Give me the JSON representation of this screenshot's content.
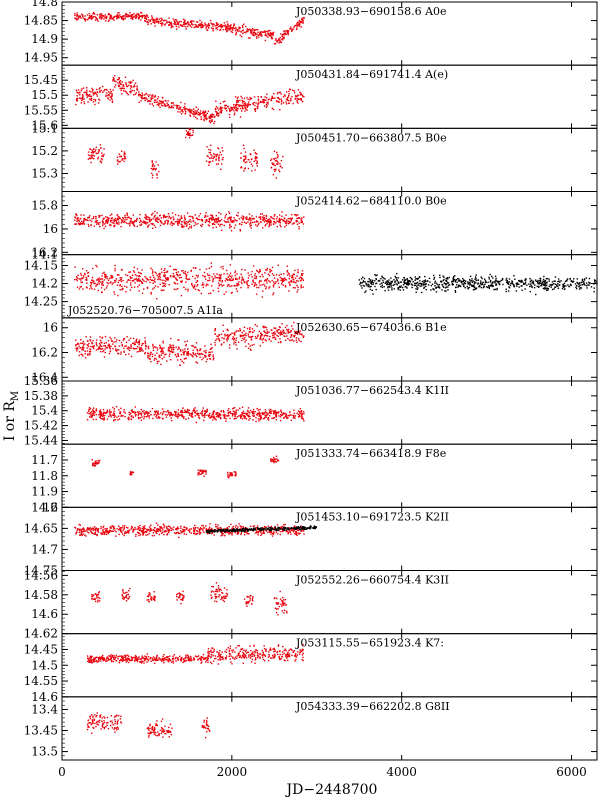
{
  "figure": {
    "xlabel": "JD−2448700",
    "ylabel_main": "I or R",
    "ylabel_sub": "M",
    "x_ticks": [
      0,
      2000,
      4000,
      6000
    ],
    "xlim": [
      0,
      6300
    ]
  },
  "colors": {
    "primary_series": "#e8000b",
    "secondary_series": "#000000",
    "frame": "#000000"
  },
  "chart_data": {
    "type": "scatter",
    "xlabel": "JD−2448700",
    "ylabel": "I or R_M",
    "xlim": [
      0,
      6300
    ],
    "shared_x": true,
    "inverted_y": true,
    "panels": [
      {
        "label": "J050338.93−690158.6  A0e",
        "ylim": [
          14.8,
          14.97
        ],
        "yticks": [
          14.8,
          14.85,
          14.9,
          14.95
        ],
        "ytick_labels": [
          "14.8",
          "14.85",
          "14.9",
          "14.95"
        ],
        "series": [
          {
            "color": "red",
            "segments": [
              [
                150,
                1000,
                14.84,
                14.84,
                0.01
              ],
              [
                1000,
                2000,
                14.85,
                14.87,
                0.012
              ],
              [
                2000,
                2500,
                14.87,
                14.89,
                0.015
              ],
              [
                2500,
                2850,
                14.91,
                14.85,
                0.012
              ]
            ]
          }
        ]
      },
      {
        "label": "J050431.84−691741.4  A(e)",
        "ylim": [
          15.4,
          15.61
        ],
        "yticks": [
          15.45,
          15.5,
          15.55,
          15.6
        ],
        "ytick_labels": [
          "15.45",
          "15.5",
          "15.55",
          "15.6"
        ],
        "series": [
          {
            "color": "red",
            "segments": [
              [
                150,
                600,
                15.5,
                15.5,
                0.025
              ],
              [
                600,
                900,
                15.46,
                15.48,
                0.025
              ],
              [
                900,
                1800,
                15.5,
                15.58,
                0.02
              ],
              [
                1800,
                2850,
                15.55,
                15.5,
                0.025
              ]
            ]
          }
        ]
      },
      {
        "label": "J050451.70−663807.5  B0e",
        "ylim": [
          15.1,
          15.38
        ],
        "yticks": [
          15.1,
          15.2,
          15.3
        ],
        "ytick_labels": [
          "15.1",
          "15.2",
          "15.3"
        ],
        "series": [
          {
            "color": "red",
            "segments": [
              [
                300,
                500,
                15.22,
                15.22,
                0.04
              ],
              [
                650,
                750,
                15.23,
                15.23,
                0.03
              ],
              [
                1050,
                1150,
                15.28,
                15.28,
                0.04
              ],
              [
                1450,
                1550,
                15.12,
                15.12,
                0.03
              ],
              [
                1700,
                1900,
                15.22,
                15.22,
                0.05
              ],
              [
                2100,
                2300,
                15.24,
                15.24,
                0.05
              ],
              [
                2450,
                2600,
                15.25,
                15.25,
                0.05
              ]
            ]
          }
        ]
      },
      {
        "label": "J052414.62−684110.0  B0e",
        "ylim": [
          15.68,
          16.22
        ],
        "yticks": [
          15.8,
          16.0,
          16.2
        ],
        "ytick_labels": [
          "15.8",
          "16",
          "16.2"
        ],
        "series": [
          {
            "color": "red",
            "segments": [
              [
                150,
                2850,
                15.93,
                15.93,
                0.06
              ]
            ]
          }
        ]
      },
      {
        "label": "J052520.76−705007.5  A1Ia",
        "label_pos": "bottom-left",
        "ylim": [
          14.12,
          14.295
        ],
        "yticks": [
          14.15,
          14.2,
          14.25
        ],
        "ytick_labels": [
          "14.15",
          "14.2",
          "14.25"
        ],
        "ytick_extra_top": "14.1",
        "series": [
          {
            "color": "red",
            "segments": [
              [
                150,
                2850,
                14.19,
                14.19,
                0.035
              ]
            ]
          },
          {
            "color": "black",
            "segments": [
              [
                3500,
                6300,
                14.2,
                14.2,
                0.02
              ]
            ]
          }
        ]
      },
      {
        "label": "J052630.65−674036.6  B1e",
        "ylim": [
          15.92,
          16.43
        ],
        "yticks": [
          16.0,
          16.2,
          16.4
        ],
        "ytick_labels": [
          "16",
          "16.2",
          "16.4"
        ],
        "series": [
          {
            "color": "red",
            "segments": [
              [
                150,
                1000,
                16.15,
                16.15,
                0.08
              ],
              [
                1000,
                1800,
                16.2,
                16.2,
                0.09
              ],
              [
                1800,
                2850,
                16.08,
                16.05,
                0.08
              ]
            ]
          }
        ]
      },
      {
        "label": "J051036.77−662543.4  K1II",
        "ylim": [
          15.36,
          15.445
        ],
        "yticks": [
          15.36,
          15.38,
          15.4,
          15.42,
          15.44
        ],
        "ytick_labels": [
          "15.36",
          "15.38",
          "15.4",
          "15.42",
          "15.44"
        ],
        "series": [
          {
            "color": "red",
            "segments": [
              [
                300,
                2850,
                15.405,
                15.405,
                0.008
              ]
            ]
          }
        ]
      },
      {
        "label": "J051333.74−663418.9  F8e",
        "ylim": [
          11.6,
          12.0
        ],
        "yticks": [
          11.7,
          11.8,
          11.9,
          12.0
        ],
        "ytick_labels": [
          "11.7",
          "11.8",
          "11.9",
          "12"
        ],
        "series": [
          {
            "color": "red",
            "segments": [
              [
                350,
                450,
                11.72,
                11.72,
                0.03
              ],
              [
                800,
                850,
                11.78,
                11.78,
                0.02
              ],
              [
                1600,
                1700,
                11.78,
                11.78,
                0.02
              ],
              [
                1950,
                2050,
                11.79,
                11.79,
                0.02
              ],
              [
                2450,
                2550,
                11.7,
                11.7,
                0.02
              ]
            ]
          }
        ]
      },
      {
        "label": "J051453.10−691723.5  K2II",
        "ylim": [
          14.6,
          14.75
        ],
        "yticks": [
          14.6,
          14.65,
          14.7,
          14.75
        ],
        "ytick_labels": [
          "14.6",
          "14.65",
          "14.7",
          "14.75"
        ],
        "series": [
          {
            "color": "red",
            "segments": [
              [
                150,
                2850,
                14.655,
                14.655,
                0.012
              ]
            ]
          },
          {
            "color": "black",
            "segments": [
              [
                1700,
                3000,
                14.657,
                14.648,
                0.004
              ]
            ]
          }
        ]
      },
      {
        "label": "J052552.26−660754.4  K3II",
        "ylim": [
          14.555,
          14.62
        ],
        "yticks": [
          14.56,
          14.58,
          14.6,
          14.62
        ],
        "ytick_labels": [
          "14.56",
          "14.58",
          "14.6",
          "14.62"
        ],
        "series": [
          {
            "color": "red",
            "segments": [
              [
                350,
                450,
                14.583,
                14.583,
                0.007
              ],
              [
                700,
                800,
                14.58,
                14.58,
                0.007
              ],
              [
                1000,
                1100,
                14.583,
                14.583,
                0.006
              ],
              [
                1350,
                1450,
                14.583,
                14.583,
                0.006
              ],
              [
                1750,
                1950,
                14.58,
                14.58,
                0.01
              ],
              [
                2150,
                2250,
                14.585,
                14.585,
                0.007
              ],
              [
                2500,
                2650,
                14.59,
                14.59,
                0.01
              ]
            ]
          }
        ]
      },
      {
        "label": "J053115.55−651923.4  K7:",
        "ylim": [
          14.4,
          14.6
        ],
        "yticks": [
          14.45,
          14.5,
          14.55,
          14.6
        ],
        "ytick_labels": [
          "14.45",
          "14.5",
          "14.55",
          "14.6"
        ],
        "series": [
          {
            "color": "red",
            "segments": [
              [
                300,
                1700,
                14.48,
                14.48,
                0.012
              ],
              [
                1700,
                2850,
                14.47,
                14.46,
                0.025
              ]
            ]
          }
        ]
      },
      {
        "label": "J054333.39−662202.8  G8II",
        "ylim": [
          13.37,
          13.52
        ],
        "yticks": [
          13.4,
          13.45,
          13.5
        ],
        "ytick_labels": [
          "13.4",
          "13.45",
          "13.5"
        ],
        "series": [
          {
            "color": "red",
            "segments": [
              [
                300,
                700,
                13.43,
                13.43,
                0.02
              ],
              [
                1000,
                1300,
                13.45,
                13.45,
                0.02
              ],
              [
                1650,
                1750,
                13.44,
                13.44,
                0.02
              ]
            ]
          }
        ]
      }
    ]
  }
}
